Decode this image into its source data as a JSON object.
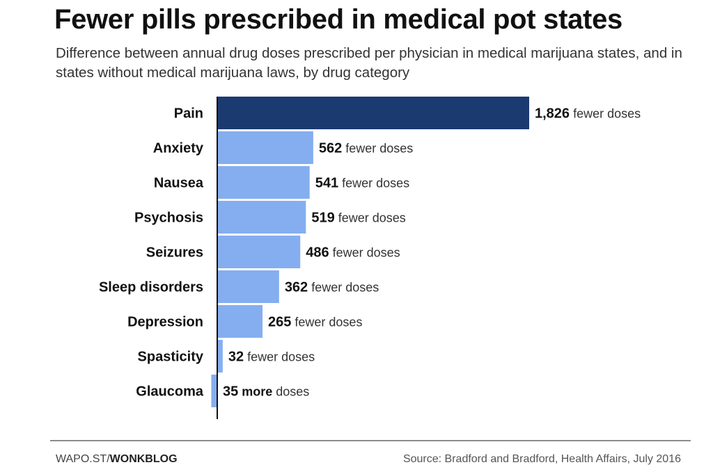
{
  "header": {
    "title": "Fewer pills prescribed in medical pot states",
    "subtitle": "Difference between annual drug doses prescribed per physician in medical marijuana states, and in states without medical marijuana laws, by drug category"
  },
  "footer": {
    "credit_prefix": "WAPO.ST/",
    "credit_bold": "WONKBLOG",
    "source": "Source: Bradford and Bradford, Health Affairs, July 2016"
  },
  "chart_data": {
    "type": "bar",
    "orientation": "horizontal",
    "title": "Fewer pills prescribed in medical pot states",
    "subtitle": "Difference between annual drug doses prescribed per physician in medical marijuana states, and in states without medical marijuana laws, by drug category",
    "categories": [
      "Pain",
      "Anxiety",
      "Nausea",
      "Psychosis",
      "Seizures",
      "Sleep disorders",
      "Depression",
      "Spasticity",
      "Glaucoma"
    ],
    "values": [
      1826,
      562,
      541,
      519,
      486,
      362,
      265,
      32,
      -35
    ],
    "value_labels": [
      "1,826",
      "562",
      "541",
      "519",
      "486",
      "362",
      "265",
      "32",
      "35"
    ],
    "direction_words": [
      "",
      "",
      "",
      "",
      "",
      "",
      "",
      "",
      "more"
    ],
    "unit_labels": [
      "fewer doses",
      "fewer doses",
      "fewer doses",
      "fewer doses",
      "fewer doses",
      "fewer doses",
      "fewer doses",
      "fewer doses",
      "doses"
    ],
    "highlight_index": 0,
    "colors": {
      "highlight": "#1b3a70",
      "default": "#85aef0",
      "axis": "#111111"
    },
    "xlim": [
      -35,
      1826
    ],
    "grid": false,
    "legend": "none"
  }
}
